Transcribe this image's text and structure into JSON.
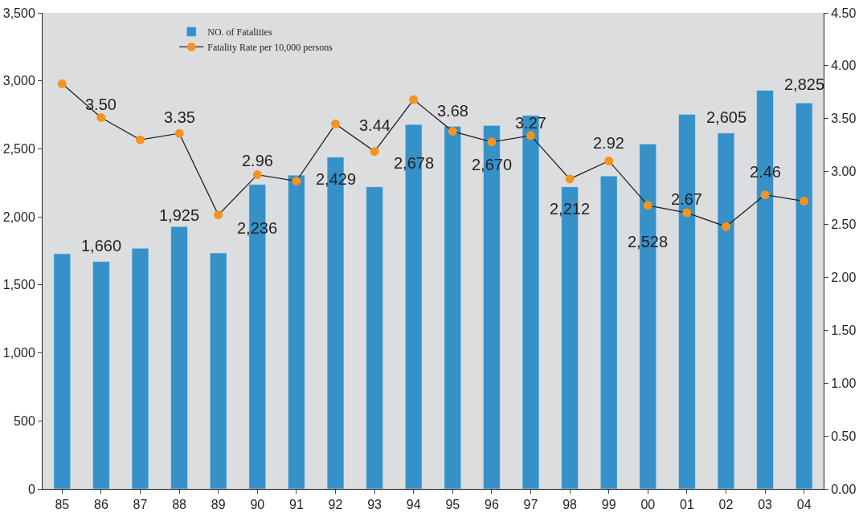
{
  "chart_data": {
    "type": "bar",
    "categories": [
      "85",
      "86",
      "87",
      "88",
      "89",
      "90",
      "91",
      "92",
      "93",
      "94",
      "95",
      "96",
      "97",
      "98",
      "99",
      "00",
      "01",
      "02",
      "03",
      "04"
    ],
    "series": [
      {
        "name": "NO. of Fatalities",
        "color": "#3591c8",
        "values": [
          1729,
          1672,
          1769,
          1929,
          1735,
          2238,
          2307,
          2439,
          2221,
          2679,
          2666,
          2672,
          2746,
          2221,
          2301,
          2536,
          2754,
          2616,
          2931,
          2838
        ]
      },
      {
        "name": "Fatality Rate per 10,000 persons",
        "type": "line",
        "axis": "y2",
        "color": "#f7931e",
        "marker": "circle",
        "line_style": "solid",
        "values": [
          3.83,
          3.51,
          3.3,
          3.36,
          2.59,
          2.97,
          2.91,
          3.45,
          3.19,
          3.68,
          3.38,
          3.28,
          3.34,
          2.93,
          3.1,
          2.68,
          2.61,
          2.48,
          2.78,
          2.72
        ]
      }
    ],
    "ylim": [
      0,
      3500
    ],
    "yticks": [
      0,
      {
        "value": 500,
        "label": "500"
      },
      {
        "value": 1000,
        "label": "1,000"
      },
      {
        "value": 1500,
        "label": "1,500"
      },
      {
        "value": 2000,
        "label": "2,000"
      },
      {
        "value": 2500,
        "label": "2,500"
      },
      {
        "value": 3000,
        "label": "3,000"
      },
      {
        "value": 3500,
        "label": "3,500"
      }
    ],
    "y2lim": [
      0,
      4.5
    ],
    "y2ticks": [
      {
        "value": 0,
        "label": "0.00"
      },
      {
        "value": 0.5,
        "label": "0.50"
      },
      {
        "value": 1,
        "label": "1.00"
      },
      {
        "value": 1.5,
        "label": "1.50"
      },
      {
        "value": 2,
        "label": "2.00"
      },
      {
        "value": 2.5,
        "label": "2.50"
      },
      {
        "value": 3,
        "label": "3.00"
      },
      {
        "value": 3.5,
        "label": "3.50"
      },
      {
        "value": 4,
        "label": "4.00"
      },
      {
        "value": 4.5,
        "label": "4.50"
      }
    ],
    "grid": false,
    "legend": "top left",
    "annotations": [
      "3.50",
      "3.35",
      "1,660",
      "1,925",
      "2,236",
      "2.96",
      "2,429",
      "3.44",
      "2,678",
      "3.68",
      "2,670",
      "3.27",
      "2,212",
      "2.92",
      "2,528",
      "2.67",
      "2,605",
      "2.46",
      "2,825"
    ]
  }
}
